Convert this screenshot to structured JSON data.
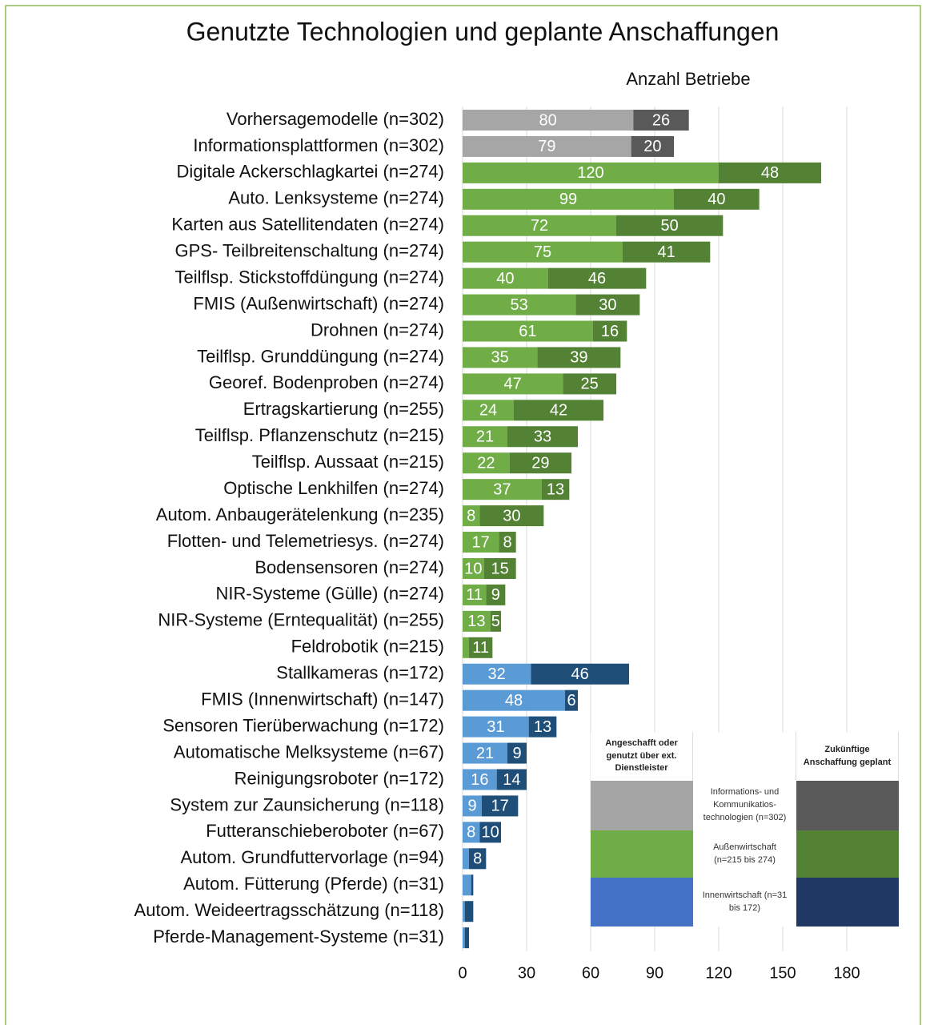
{
  "chart_data": {
    "type": "stacked-bar-horizontal",
    "title": "Genutzte Technologien und geplante Anschaffungen",
    "x_axis_label": "Anzahl Betriebe",
    "categories": [
      "Vorhersagemodelle (n=302)",
      "Informationsplattformen (n=302)",
      "Digitale Ackerschlagkartei (n=274)",
      "Auto. Lenksysteme (n=274)",
      "Karten aus Satellitendaten (n=274)",
      "GPS- Teilbreitenschaltung (n=274)",
      "Teilflsp. Stickstoffdüngung (n=274)",
      "FMIS (Außenwirtschaft) (n=274)",
      "Drohnen (n=274)",
      "Teilflsp. Grunddüngung (n=274)",
      "Georef. Bodenproben (n=274)",
      "Ertragskartierung (n=255)",
      "Teilflsp. Pflanzenschutz (n=215)",
      "Teilflsp. Aussaat (n=215)",
      "Optische Lenkhilfen (n=274)",
      "Autom. Anbaugerätelenkung (n=235)",
      "Flotten- und Telemetriesys. (n=274)",
      "Bodensensoren (n=274)",
      "NIR-Systeme (Gülle) (n=274)",
      "NIR-Systeme (Erntequalität) (n=255)",
      "Feldrobotik (n=215)",
      "Stallkameras (n=172)",
      "FMIS (Innenwirtschaft) (n=147)",
      "Sensoren Tierüberwachung (n=172)",
      "Automatische Melksysteme (n=67)",
      "Reinigungsroboter (n=172)",
      "System zur Zaunsicherung (n=118)",
      "Futteranschieberoboter (n=67)",
      "Autom. Grundfuttervorlage (n=94)",
      "Autom. Fütterung (Pferde) (n=31)",
      "Autom. Weideertragsschätzung (n=118)",
      "Pferde-Management-Systeme (n=31)"
    ],
    "series": [
      {
        "name": "Angeschafft oder genutzt über ext. Dienstleister",
        "values": [
          80,
          79,
          120,
          99,
          72,
          75,
          40,
          53,
          61,
          35,
          47,
          24,
          21,
          22,
          37,
          8,
          17,
          10,
          11,
          13,
          3,
          32,
          48,
          31,
          21,
          16,
          9,
          8,
          3,
          4,
          1,
          1
        ],
        "colors": [
          "#a6a6a6",
          "#a6a6a6",
          "#70ad47",
          "#70ad47",
          "#70ad47",
          "#70ad47",
          "#70ad47",
          "#70ad47",
          "#70ad47",
          "#70ad47",
          "#70ad47",
          "#70ad47",
          "#70ad47",
          "#70ad47",
          "#70ad47",
          "#70ad47",
          "#70ad47",
          "#70ad47",
          "#70ad47",
          "#70ad47",
          "#70ad47",
          "#5b9bd5",
          "#5b9bd5",
          "#5b9bd5",
          "#5b9bd5",
          "#5b9bd5",
          "#5b9bd5",
          "#5b9bd5",
          "#5b9bd5",
          "#5b9bd5",
          "#5b9bd5",
          "#5b9bd5"
        ]
      },
      {
        "name": "Zukünftige Anschaffung geplant",
        "values": [
          26,
          20,
          48,
          40,
          50,
          41,
          46,
          30,
          16,
          39,
          25,
          42,
          33,
          29,
          13,
          30,
          8,
          15,
          9,
          5,
          11,
          46,
          6,
          13,
          9,
          14,
          17,
          10,
          8,
          1,
          4,
          2
        ],
        "colors": [
          "#595959",
          "#595959",
          "#548235",
          "#548235",
          "#548235",
          "#548235",
          "#548235",
          "#548235",
          "#548235",
          "#548235",
          "#548235",
          "#548235",
          "#548235",
          "#548235",
          "#548235",
          "#548235",
          "#548235",
          "#548235",
          "#548235",
          "#548235",
          "#548235",
          "#1f4e79",
          "#1f4e79",
          "#1f4e79",
          "#1f4e79",
          "#1f4e79",
          "#1f4e79",
          "#1f4e79",
          "#1f4e79",
          "#1f4e79",
          "#1f4e79",
          "#1f4e79"
        ]
      }
    ],
    "legend_groups": [
      {
        "label": "Informations- und Kommunikatios-technologien (n=302)",
        "colors": [
          "#a5a5a5",
          "#595959"
        ]
      },
      {
        "label": "Außenwirtschaft (n=215 bis 274)",
        "colors": [
          "#70ad47",
          "#548235"
        ]
      },
      {
        "label": "Innenwirtschaft (n=31 bis 172)",
        "colors": [
          "#4472c4",
          "#1f3864"
        ]
      }
    ],
    "xlim": [
      0,
      210
    ],
    "xticks": [
      0,
      30,
      60,
      90,
      120,
      150,
      180
    ],
    "grid": true
  }
}
